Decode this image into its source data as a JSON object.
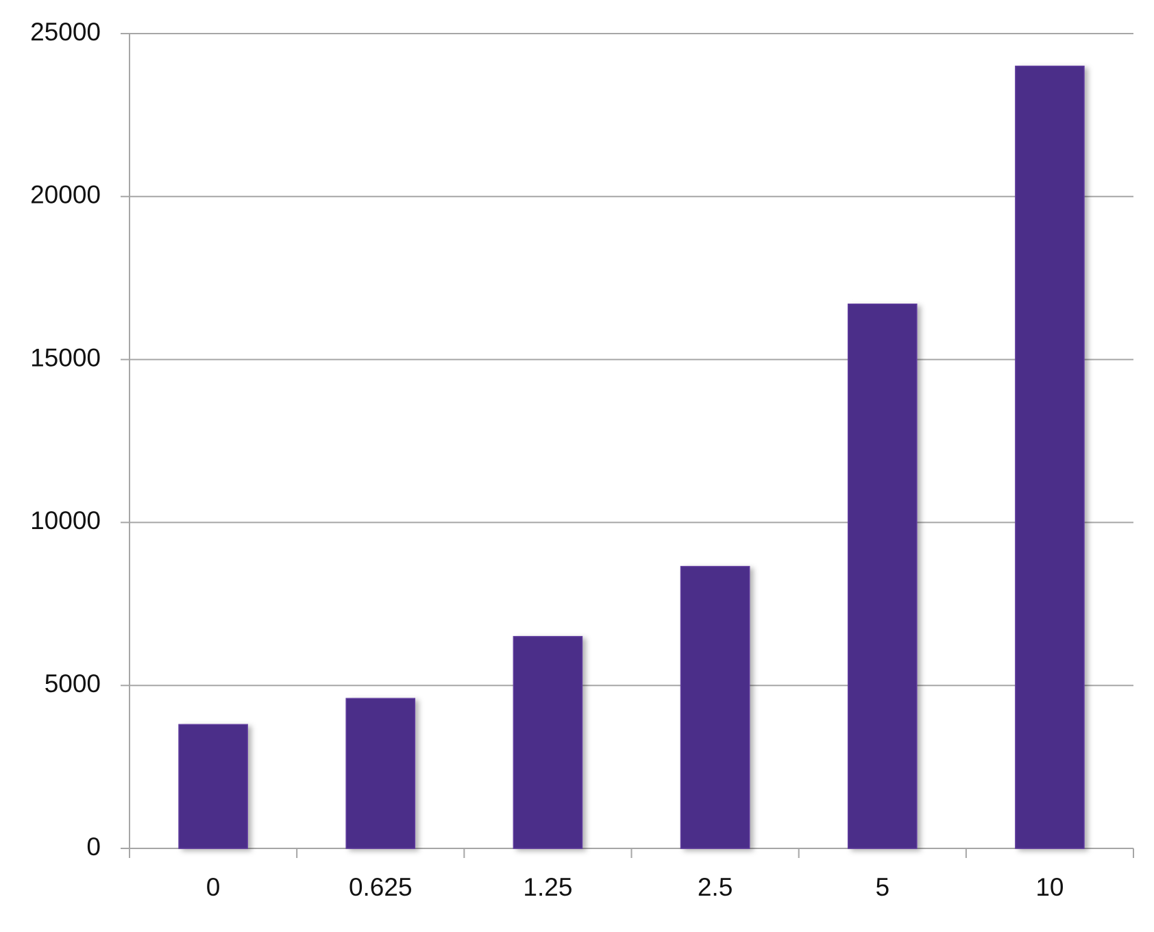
{
  "chart_data": {
    "type": "bar",
    "categories": [
      "0",
      "0.625",
      "1.25",
      "2.5",
      "5",
      "10"
    ],
    "values": [
      3800,
      4600,
      6500,
      8650,
      16700,
      24000
    ],
    "color": "#4b2d89",
    "ylim": [
      0,
      25000
    ],
    "yticks": [
      0,
      5000,
      10000,
      15000,
      20000,
      25000
    ],
    "grid": true
  }
}
